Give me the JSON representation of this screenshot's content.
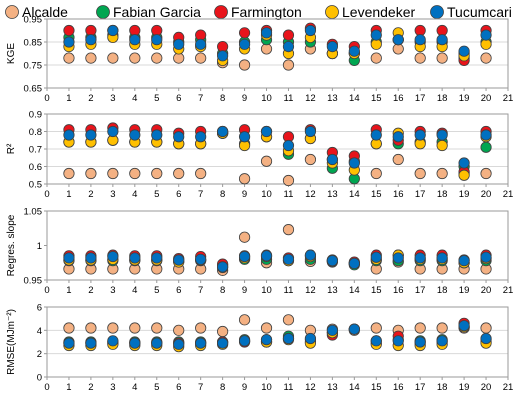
{
  "chart_data": {
    "type": "scatter",
    "x": [
      1,
      2,
      3,
      4,
      5,
      6,
      7,
      8,
      9,
      10,
      11,
      12,
      13,
      14,
      15,
      16,
      17,
      18,
      19,
      20
    ],
    "xlim": [
      0,
      21
    ],
    "xticks": [
      "0",
      "1",
      "2",
      "3",
      "4",
      "5",
      "6",
      "7",
      "8",
      "9",
      "10",
      "11",
      "12",
      "13",
      "14",
      "15",
      "16",
      "17",
      "18",
      "19",
      "20",
      "21"
    ],
    "legend_position": "top",
    "series_meta": [
      {
        "name": "Alcalde",
        "color": "#f4b183"
      },
      {
        "name": "Fabian Garcia",
        "color": "#00a651"
      },
      {
        "name": "Farmington",
        "color": "#e8141b"
      },
      {
        "name": "Levendeker",
        "color": "#ffc000"
      },
      {
        "name": "Tucumcari",
        "color": "#0070c0"
      }
    ],
    "panels": [
      {
        "ylabel": "KGE",
        "ylim": [
          0.65,
          0.95
        ],
        "yticks": [
          "0.65",
          "0.75",
          "0.85",
          "0.95"
        ],
        "grid": true,
        "series": [
          {
            "values": [
              0.78,
              0.78,
              0.78,
              0.78,
              0.78,
              0.78,
              0.78,
              0.76,
              0.75,
              0.82,
              0.75,
              0.82,
              0.8,
              0.8,
              0.78,
              0.82,
              0.78,
              0.78,
              0.78,
              0.78
            ]
          },
          {
            "values": [
              0.87,
              0.87,
              0.88,
              0.87,
              0.87,
              0.85,
              0.86,
              0.8,
              0.85,
              0.86,
              0.85,
              0.85,
              0.8,
              0.77,
              0.85,
              0.86,
              0.85,
              0.85,
              0.8,
              0.85
            ]
          },
          {
            "values": [
              0.9,
              0.9,
              0.9,
              0.9,
              0.9,
              0.87,
              0.88,
              0.83,
              0.89,
              0.9,
              0.88,
              0.91,
              0.84,
              0.83,
              0.9,
              0.86,
              0.9,
              0.9,
              0.77,
              0.9
            ]
          },
          {
            "values": [
              0.83,
              0.84,
              0.87,
              0.84,
              0.84,
              0.82,
              0.83,
              0.77,
              0.82,
              0.88,
              0.8,
              0.87,
              0.8,
              0.8,
              0.84,
              0.89,
              0.83,
              0.83,
              0.79,
              0.84
            ]
          },
          {
            "values": [
              0.85,
              0.86,
              0.9,
              0.86,
              0.86,
              0.84,
              0.84,
              0.79,
              0.84,
              0.89,
              0.83,
              0.9,
              0.83,
              0.81,
              0.88,
              0.86,
              0.86,
              0.86,
              0.81,
              0.88
            ]
          }
        ]
      },
      {
        "ylabel": "R²",
        "ylim": [
          0.5,
          0.9
        ],
        "yticks": [
          "0.5",
          "0.6",
          "0.7",
          "0.8",
          "0.9"
        ],
        "grid": true,
        "series": [
          {
            "values": [
              0.56,
              0.56,
              0.56,
              0.56,
              0.56,
              0.56,
              0.56,
              0.79,
              0.53,
              0.63,
              0.52,
              0.64,
              0.64,
              0.63,
              0.56,
              0.64,
              0.56,
              0.56,
              0.56,
              0.56
            ]
          },
          {
            "values": [
              0.74,
              0.74,
              0.75,
              0.74,
              0.74,
              0.73,
              0.73,
              0.79,
              0.73,
              0.77,
              0.67,
              0.76,
              0.59,
              0.53,
              0.73,
              0.73,
              0.74,
              0.74,
              0.6,
              0.71
            ]
          },
          {
            "values": [
              0.81,
              0.81,
              0.82,
              0.81,
              0.81,
              0.79,
              0.8,
              0.8,
              0.81,
              0.8,
              0.77,
              0.81,
              0.68,
              0.66,
              0.81,
              0.75,
              0.8,
              0.79,
              0.57,
              0.8
            ]
          },
          {
            "values": [
              0.74,
              0.74,
              0.75,
              0.74,
              0.74,
              0.73,
              0.73,
              0.79,
              0.72,
              0.77,
              0.69,
              0.76,
              0.62,
              0.58,
              0.73,
              0.79,
              0.73,
              0.72,
              0.55,
              0.77
            ]
          },
          {
            "values": [
              0.78,
              0.78,
              0.8,
              0.78,
              0.78,
              0.77,
              0.77,
              0.8,
              0.77,
              0.8,
              0.72,
              0.8,
              0.64,
              0.62,
              0.78,
              0.77,
              0.78,
              0.78,
              0.62,
              0.78
            ]
          }
        ]
      },
      {
        "ylabel": "Regres. slope",
        "ylim": [
          0.95,
          1.05
        ],
        "yticks": [
          "0.95",
          "1",
          "1.05"
        ],
        "grid": false,
        "series": [
          {
            "values": [
              0.966,
              0.966,
              0.966,
              0.966,
              0.966,
              0.966,
              0.966,
              0.964,
              1.012,
              0.975,
              1.023,
              0.977,
              0.976,
              0.974,
              0.966,
              0.976,
              0.966,
              0.966,
              0.966,
              0.966
            ]
          },
          {
            "values": [
              0.978,
              0.978,
              0.978,
              0.978,
              0.978,
              0.977,
              0.978,
              0.971,
              0.98,
              0.98,
              0.978,
              0.98,
              0.977,
              0.972,
              0.978,
              0.978,
              0.978,
              0.978,
              0.975,
              0.978
            ]
          },
          {
            "values": [
              0.985,
              0.985,
              0.986,
              0.985,
              0.985,
              0.981,
              0.984,
              0.973,
              0.985,
              0.986,
              0.982,
              0.986,
              0.979,
              0.976,
              0.986,
              0.986,
              0.986,
              0.986,
              0.979,
              0.986
            ]
          },
          {
            "values": [
              0.979,
              0.979,
              0.98,
              0.979,
              0.979,
              0.976,
              0.979,
              0.968,
              0.982,
              0.984,
              0.978,
              0.984,
              0.978,
              0.974,
              0.98,
              0.986,
              0.98,
              0.98,
              0.975,
              0.981
            ]
          },
          {
            "values": [
              0.982,
              0.982,
              0.984,
              0.982,
              0.982,
              0.979,
              0.98,
              0.969,
              0.984,
              0.985,
              0.98,
              0.986,
              0.978,
              0.974,
              0.983,
              0.982,
              0.982,
              0.982,
              0.978,
              0.983
            ]
          }
        ]
      },
      {
        "ylabel": "RMSE(MJm⁻²)",
        "ylim": [
          0,
          6
        ],
        "yticks": [
          "0",
          "2",
          "4",
          "6"
        ],
        "grid": true,
        "series": [
          {
            "values": [
              4.2,
              4.2,
              4.2,
              4.2,
              4.2,
              4.0,
              4.2,
              3.9,
              4.9,
              4.2,
              4.9,
              4.0,
              4.1,
              4.0,
              4.2,
              4.0,
              4.2,
              4.2,
              4.2,
              4.2
            ]
          },
          {
            "values": [
              3.0,
              3.0,
              3.0,
              3.0,
              3.0,
              3.0,
              3.0,
              3.0,
              3.2,
              3.2,
              3.5,
              3.2,
              3.8,
              4.1,
              3.1,
              3.2,
              3.1,
              3.2,
              4.3,
              3.2
            ]
          },
          {
            "values": [
              2.9,
              2.9,
              2.9,
              2.9,
              2.9,
              2.9,
              2.9,
              3.0,
              3.0,
              3.0,
              3.3,
              3.0,
              3.6,
              4.1,
              2.9,
              3.5,
              2.9,
              3.0,
              4.6,
              3.0
            ]
          },
          {
            "values": [
              2.7,
              2.7,
              2.8,
              2.7,
              2.7,
              2.6,
              2.7,
              2.8,
              3.1,
              3.0,
              3.2,
              2.9,
              3.8,
              4.1,
              2.8,
              2.7,
              2.7,
              2.8,
              4.3,
              2.9
            ]
          },
          {
            "values": [
              2.9,
              2.9,
              3.1,
              2.9,
              2.9,
              2.8,
              2.9,
              2.9,
              3.1,
              3.2,
              3.3,
              3.3,
              4.0,
              4.1,
              3.1,
              3.1,
              3.0,
              3.1,
              4.4,
              3.3
            ]
          }
        ]
      }
    ]
  }
}
